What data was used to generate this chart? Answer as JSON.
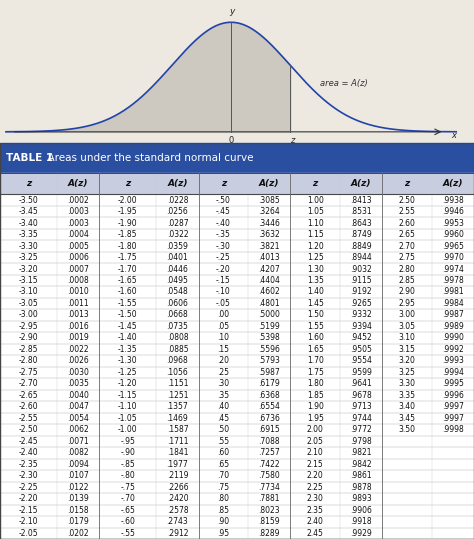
{
  "title_bold": "TABLE 1",
  "title_rest": "  Areas under the standard normal curve",
  "header_bg": "#2B4FA0",
  "col_header_bg": "#C8CDE0",
  "row_bg_even": "#FFFFFF",
  "row_bg_odd": "#F0F0F0",
  "border_color": "#666666",
  "bell_bg": "#E8E4DC",
  "bell_line_color": "#2244AA",
  "bell_fill_color": "#C8C4BC",
  "table_data": [
    [
      "-3.50",
      ".0002",
      "-2.00",
      ".0228",
      "-.50",
      ".3085",
      "1.00",
      ".8413",
      "2.50",
      ".9938"
    ],
    [
      "-3.45",
      ".0003",
      "-1.95",
      ".0256",
      "-.45",
      ".3264",
      "1.05",
      ".8531",
      "2.55",
      ".9946"
    ],
    [
      "-3.40",
      ".0003",
      "-1.90",
      ".0287",
      "-.40",
      ".3446",
      "1.10",
      ".8643",
      "2.60",
      ".9953"
    ],
    [
      "-3.35",
      ".0004",
      "-1.85",
      ".0322",
      "-.35",
      ".3632",
      "1.15",
      ".8749",
      "2.65",
      ".9960"
    ],
    [
      "-3.30",
      ".0005",
      "-1.80",
      ".0359",
      "-.30",
      ".3821",
      "1.20",
      ".8849",
      "2.70",
      ".9965"
    ],
    [
      "-3.25",
      ".0006",
      "-1.75",
      ".0401",
      "-.25",
      ".4013",
      "1.25",
      ".8944",
      "2.75",
      ".9970"
    ],
    [
      "-3.20",
      ".0007",
      "-1.70",
      ".0446",
      "-.20",
      ".4207",
      "1.30",
      ".9032",
      "2.80",
      ".9974"
    ],
    [
      "-3.15",
      ".0008",
      "-1.65",
      ".0495",
      "-.15",
      ".4404",
      "1.35",
      ".9115",
      "2.85",
      ".9978"
    ],
    [
      "-3.10",
      ".0010",
      "-1.60",
      ".0548",
      "-.10",
      ".4602",
      "1.40",
      ".9192",
      "2.90",
      ".9981"
    ],
    [
      "-3.05",
      ".0011",
      "-1.55",
      ".0606",
      "-.05",
      ".4801",
      "1.45",
      ".9265",
      "2.95",
      ".9984"
    ],
    [
      "-3.00",
      ".0013",
      "-1.50",
      ".0668",
      ".00",
      ".5000",
      "1.50",
      ".9332",
      "3.00",
      ".9987"
    ],
    [
      "-2.95",
      ".0016",
      "-1.45",
      ".0735",
      ".05",
      ".5199",
      "1.55",
      ".9394",
      "3.05",
      ".9989"
    ],
    [
      "-2.90",
      ".0019",
      "-1.40",
      ".0808",
      ".10",
      ".5398",
      "1.60",
      ".9452",
      "3.10",
      ".9990"
    ],
    [
      "-2.85",
      ".0022",
      "-1.35",
      ".0885",
      ".15",
      ".5596",
      "1.65",
      ".9505",
      "3.15",
      ".9992"
    ],
    [
      "-2.80",
      ".0026",
      "-1.30",
      ".0968",
      ".20",
      ".5793",
      "1.70",
      ".9554",
      "3.20",
      ".9993"
    ],
    [
      "-2.75",
      ".0030",
      "-1.25",
      ".1056",
      ".25",
      ".5987",
      "1.75",
      ".9599",
      "3.25",
      ".9994"
    ],
    [
      "-2.70",
      ".0035",
      "-1.20",
      ".1151",
      ".30",
      ".6179",
      "1.80",
      ".9641",
      "3.30",
      ".9995"
    ],
    [
      "-2.65",
      ".0040",
      "-1.15",
      ".1251",
      ".35",
      ".6368",
      "1.85",
      ".9678",
      "3.35",
      ".9996"
    ],
    [
      "-2.60",
      ".0047",
      "-1.10",
      ".1357",
      ".40",
      ".6554",
      "1.90",
      ".9713",
      "3.40",
      ".9997"
    ],
    [
      "-2.55",
      ".0054",
      "-1.05",
      ".1469",
      ".45",
      ".6736",
      "1.95",
      ".9744",
      "3.45",
      ".9997"
    ],
    [
      "-2.50",
      ".0062",
      "-1.00",
      ".1587",
      ".50",
      ".6915",
      "2.00",
      ".9772",
      "3.50",
      ".9998"
    ],
    [
      "-2.45",
      ".0071",
      "-.95",
      ".1711",
      ".55",
      ".7088",
      "2.05",
      ".9798",
      "",
      ""
    ],
    [
      "-2.40",
      ".0082",
      "-.90",
      ".1841",
      ".60",
      ".7257",
      "2.10",
      ".9821",
      "",
      ""
    ],
    [
      "-2.35",
      ".0094",
      "-.85",
      ".1977",
      ".65",
      ".7422",
      "2.15",
      ".9842",
      "",
      ""
    ],
    [
      "-2.30",
      ".0107",
      "-.80",
      ".2119",
      ".70",
      ".7580",
      "2.20",
      ".9861",
      "",
      ""
    ],
    [
      "-2.25",
      ".0122",
      "-.75",
      ".2266",
      ".75",
      ".7734",
      "2.25",
      ".9878",
      "",
      ""
    ],
    [
      "-2.20",
      ".0139",
      "-.70",
      ".2420",
      ".80",
      ".7881",
      "2.30",
      ".9893",
      "",
      ""
    ],
    [
      "-2.15",
      ".0158",
      "-.65",
      ".2578",
      ".85",
      ".8023",
      "2.35",
      ".9906",
      "",
      ""
    ],
    [
      "-2.10",
      ".0179",
      "-.60",
      ".2743",
      ".90",
      ".8159",
      "2.40",
      ".9918",
      "",
      ""
    ],
    [
      "-2.05",
      ".0202",
      "-.55",
      ".2912",
      ".95",
      ".8289",
      "2.45",
      ".9929",
      "",
      ""
    ]
  ],
  "col_headers": [
    "z",
    "A(z)",
    "z",
    "A(z)",
    "z",
    "A(z)",
    "z",
    "A(z)",
    "z",
    "A(z)"
  ]
}
